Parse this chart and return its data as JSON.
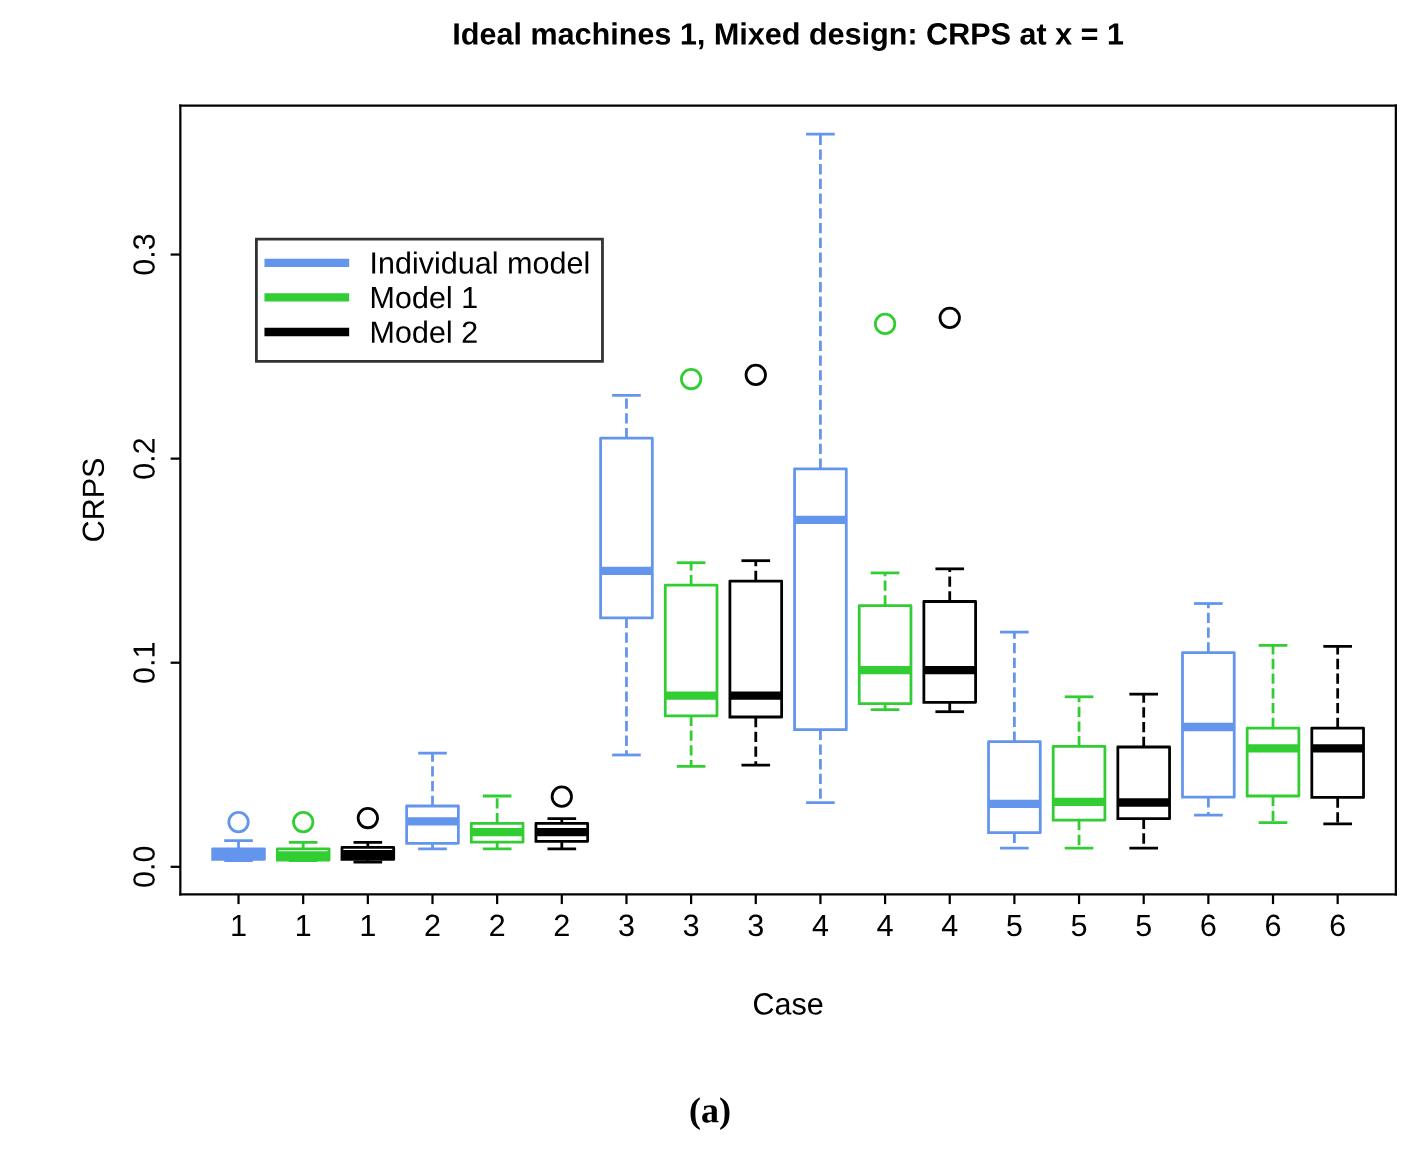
{
  "chart_data": {
    "type": "box",
    "title": "Ideal machines 1, Mixed design: CRPS at x = 1",
    "xlabel": "Case",
    "ylabel": "CRPS",
    "categories": [
      "1",
      "1",
      "1",
      "2",
      "2",
      "2",
      "3",
      "3",
      "3",
      "4",
      "4",
      "4",
      "5",
      "5",
      "5",
      "6",
      "6",
      "6"
    ],
    "ylim": [
      -0.0135,
      0.373
    ],
    "yticks": [
      {
        "value": 0.0,
        "label": "0.0"
      },
      {
        "value": 0.1,
        "label": "0.1"
      },
      {
        "value": 0.2,
        "label": "0.2"
      },
      {
        "value": 0.3,
        "label": "0.3"
      }
    ],
    "grid": false,
    "legend": "top left",
    "line_style": "dashed",
    "marker": "circle",
    "annotations": [
      "(a)"
    ],
    "series": [
      {
        "name": "Individual model",
        "color": "#6495ed",
        "boxes": [
          {
            "low": 0.003,
            "q1": 0.0036,
            "median": 0.0062,
            "q3": 0.0088,
            "high": 0.0128,
            "outliers": [
              0.0219
            ]
          },
          null,
          null,
          {
            "low": 0.0088,
            "q1": 0.0115,
            "median": 0.0223,
            "q3": 0.0298,
            "high": 0.0557
          },
          null,
          null,
          {
            "low": 0.0548,
            "q1": 0.122,
            "median": 0.145,
            "q3": 0.21,
            "high": 0.231
          },
          null,
          null,
          {
            "low": 0.0315,
            "q1": 0.0672,
            "median": 0.17,
            "q3": 0.195,
            "high": 0.359
          },
          null,
          null,
          {
            "low": 0.0092,
            "q1": 0.0167,
            "median": 0.0308,
            "q3": 0.0613,
            "high": 0.115
          },
          null,
          null,
          {
            "low": 0.0253,
            "q1": 0.0341,
            "median": 0.0685,
            "q3": 0.105,
            "high": 0.129
          },
          null,
          null
        ]
      },
      {
        "name": "Model 1",
        "color": "#32cd32",
        "boxes": [
          null,
          {
            "low": 0.003,
            "q1": 0.0033,
            "median": 0.0056,
            "q3": 0.0088,
            "high": 0.012,
            "outliers": [
              0.0219
            ]
          },
          null,
          null,
          {
            "low": 0.0088,
            "q1": 0.0121,
            "median": 0.017,
            "q3": 0.0213,
            "high": 0.0347
          },
          null,
          null,
          {
            "low": 0.0492,
            "q1": 0.074,
            "median": 0.0839,
            "q3": 0.138,
            "high": 0.149,
            "outliers": [
              0.239
            ]
          },
          null,
          null,
          {
            "low": 0.077,
            "q1": 0.08,
            "median": 0.0964,
            "q3": 0.128,
            "high": 0.144,
            "outliers": [
              0.266
            ]
          },
          null,
          null,
          {
            "low": 0.0092,
            "q1": 0.0229,
            "median": 0.0318,
            "q3": 0.059,
            "high": 0.0833
          },
          null,
          null,
          {
            "low": 0.0216,
            "q1": 0.0347,
            "median": 0.058,
            "q3": 0.068,
            "high": 0.1085
          },
          null
        ]
      },
      {
        "name": "Model 2",
        "color": "#000000",
        "boxes": [
          null,
          null,
          {
            "low": 0.0023,
            "q1": 0.0036,
            "median": 0.0062,
            "q3": 0.0095,
            "high": 0.012,
            "outliers": [
              0.0239
            ]
          },
          null,
          null,
          {
            "low": 0.0088,
            "q1": 0.0125,
            "median": 0.017,
            "q3": 0.0213,
            "high": 0.0236,
            "outliers": [
              0.0344
            ]
          },
          null,
          null,
          {
            "low": 0.0498,
            "q1": 0.0734,
            "median": 0.0839,
            "q3": 0.14,
            "high": 0.15,
            "outliers": [
              0.241
            ]
          },
          null,
          null,
          {
            "low": 0.076,
            "q1": 0.0806,
            "median": 0.0964,
            "q3": 0.13,
            "high": 0.146,
            "outliers": [
              0.269
            ]
          },
          null,
          null,
          {
            "low": 0.0092,
            "q1": 0.0236,
            "median": 0.0315,
            "q3": 0.0587,
            "high": 0.0846
          },
          null,
          null,
          {
            "low": 0.021,
            "q1": 0.034,
            "median": 0.058,
            "q3": 0.068,
            "high": 0.108
          }
        ]
      }
    ]
  }
}
